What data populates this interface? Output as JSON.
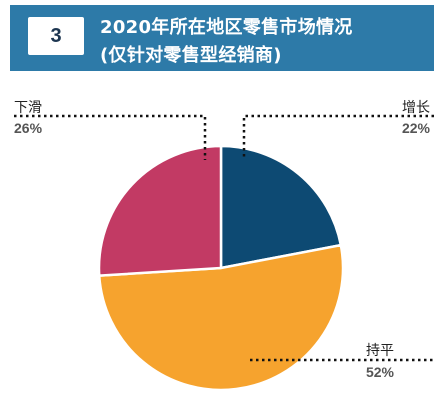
{
  "header": {
    "badge": "3",
    "title_line1": "2020年所在地区零售市场情况",
    "title_line2": "(仅针对零售型经销商)",
    "banner_color": "#2d7aa8"
  },
  "chart_data": {
    "type": "pie",
    "title": "2020年所在地区零售市场情况 (仅针对零售型经销商)",
    "slices": [
      {
        "label": "增长",
        "value": 22,
        "display": "22%",
        "color": "#0d4a73"
      },
      {
        "label": "持平",
        "value": 52,
        "display": "52%",
        "color": "#f6a32e"
      },
      {
        "label": "下滑",
        "value": 26,
        "display": "26%",
        "color": "#c23a64"
      }
    ],
    "start_angle_deg": 0,
    "direction": "clockwise"
  }
}
